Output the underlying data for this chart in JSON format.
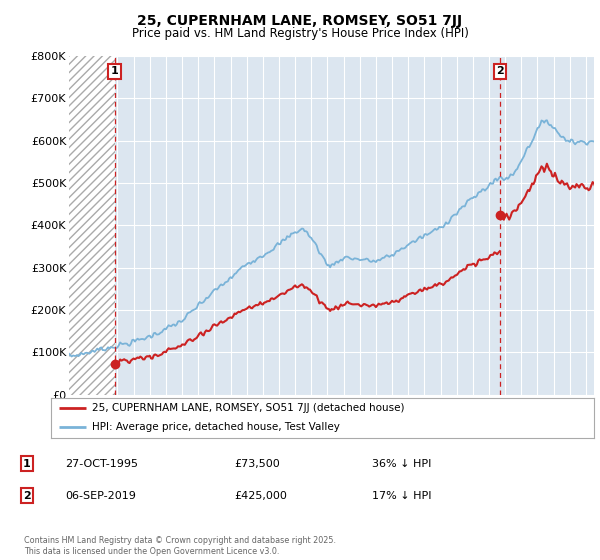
{
  "title1": "25, CUPERNHAM LANE, ROMSEY, SO51 7JJ",
  "title2": "Price paid vs. HM Land Registry's House Price Index (HPI)",
  "hpi_color": "#7ab3d8",
  "price_color": "#cc2222",
  "marker1_date": 1995.82,
  "marker2_date": 2019.68,
  "marker1_price": 73500,
  "marker2_price": 425000,
  "legend_line1": "25, CUPERNHAM LANE, ROMSEY, SO51 7JJ (detached house)",
  "legend_line2": "HPI: Average price, detached house, Test Valley",
  "note1_num": "1",
  "note1_date": "27-OCT-1995",
  "note1_price": "£73,500",
  "note1_hpi": "36% ↓ HPI",
  "note2_num": "2",
  "note2_date": "06-SEP-2019",
  "note2_price": "£425,000",
  "note2_hpi": "17% ↓ HPI",
  "copyright": "Contains HM Land Registry data © Crown copyright and database right 2025.\nThis data is licensed under the Open Government Licence v3.0.",
  "ylim_max": 800000,
  "xmin": 1993.0,
  "xmax": 2025.5
}
